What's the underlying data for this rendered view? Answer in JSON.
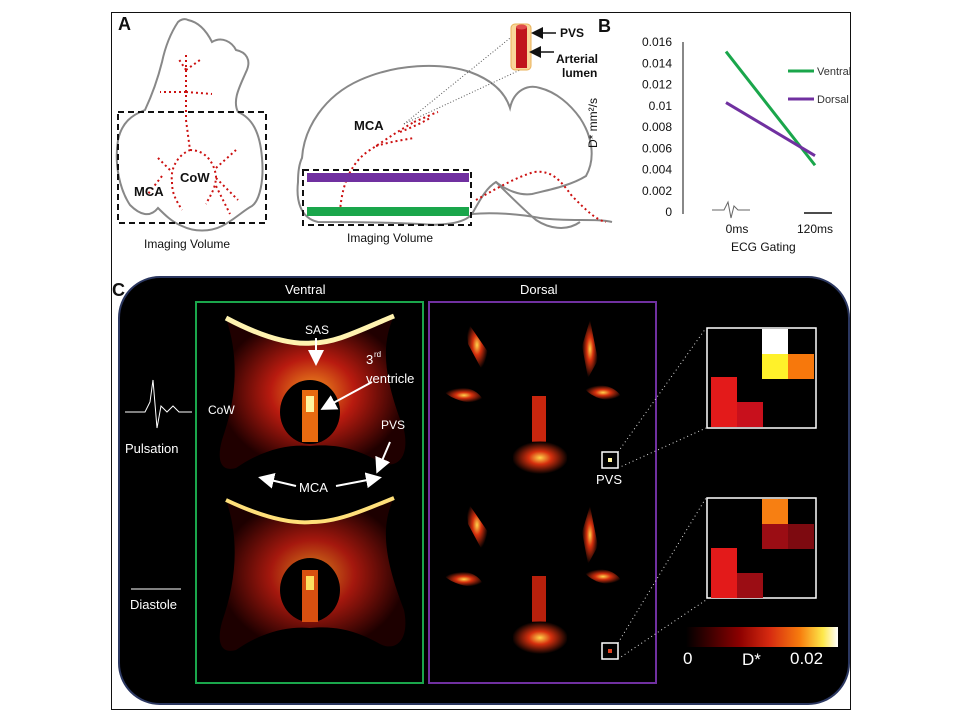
{
  "panels": {
    "a": "A",
    "b": "B",
    "c": "C"
  },
  "panel_a": {
    "labels": {
      "mca_left": "MCA",
      "cow": "CoW",
      "imaging_volume_left": "Imaging Volume",
      "mca_sagittal": "MCA",
      "imaging_volume_right": "Imaging Volume",
      "pvs": "PVS",
      "arterial_lumen_line1": "Arterial",
      "arterial_lumen_line2": "lumen"
    },
    "colors": {
      "vessel": "#cc1111",
      "dorsal_bar": "#7030a0",
      "ventral_bar": "#1aa64b"
    }
  },
  "chart_data": {
    "type": "line",
    "ylabel": "D* mm²/s",
    "xlabel": "ECG Gating",
    "categories": [
      "0ms",
      "120ms"
    ],
    "yticks": [
      "0.016",
      "0.014",
      "0.012",
      "0.01",
      "0.008",
      "0.006",
      "0.004",
      "0.002",
      "0"
    ],
    "ylim": [
      0,
      0.016
    ],
    "legend_position": "top-right",
    "series": [
      {
        "name": "Ventral",
        "color": "#1aa64b",
        "values": [
          0.0151,
          0.0044
        ]
      },
      {
        "name": "Dorsal",
        "color": "#7030a0",
        "values": [
          0.0103,
          0.0053
        ]
      }
    ]
  },
  "panel_c": {
    "col_ventral": "Ventral",
    "col_dorsal": "Dorsal",
    "row_pulsation": "Pulsation",
    "row_diastole": "Diastole",
    "ann_sas": "SAS",
    "ann_third_ventricle_sup": "rd",
    "ann_third_ventricle_3": "3",
    "ann_third_ventricle_word": "ventricle",
    "ann_cow": "CoW",
    "ann_pvs": "PVS",
    "ann_mca": "MCA",
    "ann_pvs_dorsal": "PVS",
    "colorbar_min": "0",
    "colorbar_label": "D*",
    "colorbar_max": "0.02",
    "colors": {
      "ventral_frame": "#1aa64b",
      "dorsal_frame": "#7030a0",
      "panel_border": "#2b3760"
    }
  }
}
